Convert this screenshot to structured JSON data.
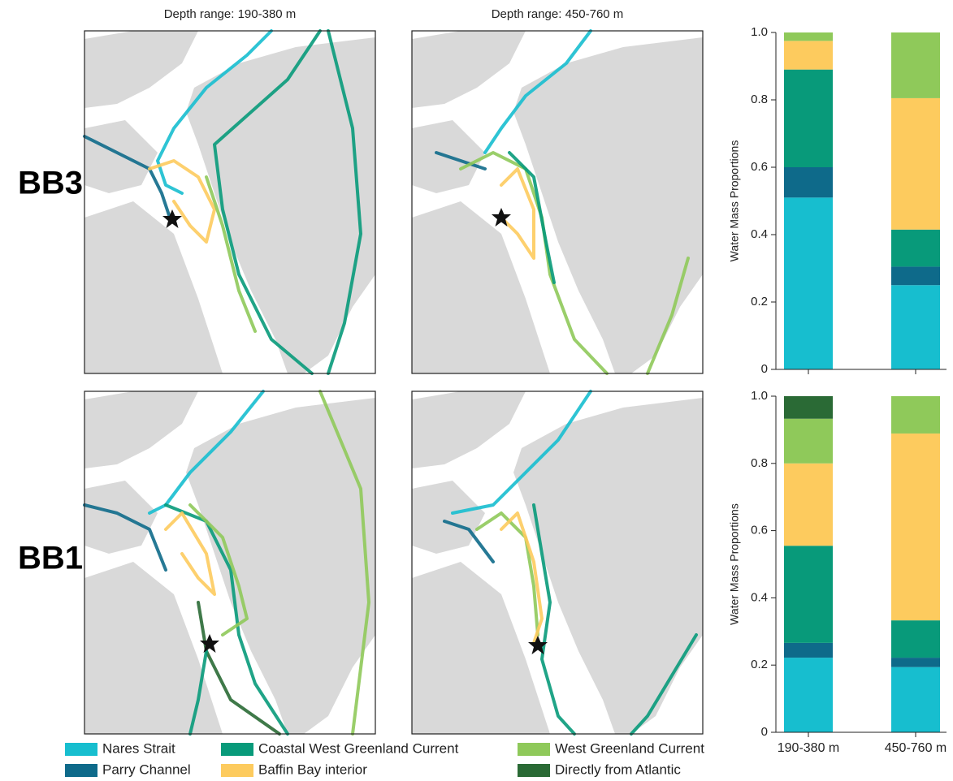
{
  "map_titles": [
    "Depth range: 190-380 m",
    "Depth range: 450-760 m"
  ],
  "chart_data": {
    "type": "bar",
    "stacked": true,
    "panels": [
      "BB3",
      "BB1"
    ],
    "ylabel": "Water Mass Proportions",
    "categories": [
      "190-380 m",
      "450-760 m"
    ],
    "series": [
      {
        "name": "Nares Strait",
        "color": "#17becf",
        "values": [
          [
            0.51,
            0.25
          ],
          [
            0.222,
            0.194
          ]
        ]
      },
      {
        "name": "Parry Channel",
        "color": "#0e6a8a",
        "values": [
          [
            0.09,
            0.055
          ],
          [
            0.044,
            0.028
          ]
        ]
      },
      {
        "name": "Coastal West Greenland Current",
        "color": "#089a7a",
        "values": [
          [
            0.29,
            0.11
          ],
          [
            0.289,
            0.111
          ]
        ]
      },
      {
        "name": "Baffin Bay interior",
        "color": "#fdcb5e",
        "values": [
          [
            0.085,
            0.39
          ],
          [
            0.245,
            0.556
          ]
        ]
      },
      {
        "name": "West Greenland Current",
        "color": "#8fc95a",
        "values": [
          [
            0.025,
            0.195
          ],
          [
            0.133,
            0.111
          ]
        ]
      },
      {
        "name": "Directly from Atlantic",
        "color": "#2a6a35",
        "values": [
          [
            0,
            0
          ],
          [
            0.067,
            0
          ]
        ]
      }
    ],
    "ylim": [
      0,
      1
    ],
    "yticks": [
      0,
      0.2,
      0.4,
      0.6,
      0.8,
      {
        "value": 1,
        "label": "1.0"
      }
    ]
  }
}
